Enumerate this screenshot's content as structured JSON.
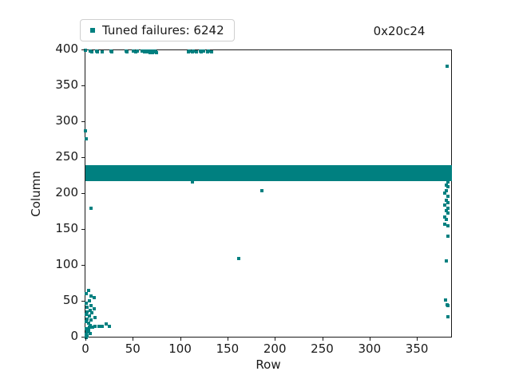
{
  "chart_data": {
    "type": "scatter",
    "title": "0x20c24",
    "xlabel": "Row",
    "ylabel": "Column",
    "xlim": [
      0,
      387
    ],
    "ylim": [
      0,
      400
    ],
    "x_ticks": [
      0,
      50,
      100,
      150,
      200,
      250,
      300,
      350
    ],
    "y_ticks": [
      0,
      50,
      100,
      150,
      200,
      250,
      300,
      350,
      400
    ],
    "grid": false,
    "legend_position": "above plot, upper-left",
    "title_position": "above plot, right",
    "series": [
      {
        "name": "Tuned failures: 6242",
        "marker": "square",
        "color": "#008080",
        "failure_count": 6242,
        "band": {
          "description": "dense horizontal band of failures spanning every row",
          "row_range": [
            0,
            387
          ],
          "col_range": [
            218,
            240.5
          ]
        },
        "points": [
          [
            0,
            400
          ],
          [
            5,
            399
          ],
          [
            7,
            398
          ],
          [
            12,
            399
          ],
          [
            13,
            398
          ],
          [
            18,
            398
          ],
          [
            27,
            399
          ],
          [
            28,
            398
          ],
          [
            43,
            399
          ],
          [
            44,
            398
          ],
          [
            51,
            399
          ],
          [
            53,
            398
          ],
          [
            55,
            399
          ],
          [
            60,
            399
          ],
          [
            62,
            398
          ],
          [
            63,
            399
          ],
          [
            66,
            398
          ],
          [
            67,
            399
          ],
          [
            68,
            397
          ],
          [
            69,
            398
          ],
          [
            70,
            399
          ],
          [
            71,
            397
          ],
          [
            72,
            398
          ],
          [
            73,
            399
          ],
          [
            74,
            398
          ],
          [
            75,
            397
          ],
          [
            109,
            398
          ],
          [
            110,
            399
          ],
          [
            113,
            398
          ],
          [
            114,
            399
          ],
          [
            117,
            398
          ],
          [
            121,
            399
          ],
          [
            122,
            398
          ],
          [
            125,
            399
          ],
          [
            129,
            398
          ],
          [
            130,
            399
          ],
          [
            133,
            398
          ],
          [
            0,
            288
          ],
          [
            1,
            277
          ],
          [
            6,
            180
          ],
          [
            3,
            66
          ],
          [
            1,
            61
          ],
          [
            6,
            58
          ],
          [
            9,
            56
          ],
          [
            4,
            51
          ],
          [
            1,
            48
          ],
          [
            6,
            45
          ],
          [
            2,
            42
          ],
          [
            9,
            40
          ],
          [
            5,
            38
          ],
          [
            2,
            36
          ],
          [
            7,
            34
          ],
          [
            1,
            32
          ],
          [
            4,
            30
          ],
          [
            10,
            28
          ],
          [
            2,
            26
          ],
          [
            6,
            24
          ],
          [
            1,
            22
          ],
          [
            3,
            20
          ],
          [
            22,
            19
          ],
          [
            5,
            17
          ],
          [
            10,
            16
          ],
          [
            14,
            16
          ],
          [
            18,
            16
          ],
          [
            25,
            16
          ],
          [
            8,
            15
          ],
          [
            4,
            14
          ],
          [
            1,
            12
          ],
          [
            3,
            10
          ],
          [
            2,
            8
          ],
          [
            5,
            6
          ],
          [
            1,
            4
          ],
          [
            2,
            2
          ],
          [
            1,
            0
          ],
          [
            113,
            217
          ],
          [
            162,
            110
          ],
          [
            186,
            204
          ],
          [
            382,
            378
          ],
          [
            383,
            217
          ],
          [
            381,
            212
          ],
          [
            383,
            210
          ],
          [
            381,
            204
          ],
          [
            379,
            201
          ],
          [
            383,
            197
          ],
          [
            381,
            191
          ],
          [
            383,
            188
          ],
          [
            379,
            184
          ],
          [
            383,
            180
          ],
          [
            381,
            177
          ],
          [
            383,
            173
          ],
          [
            379,
            168
          ],
          [
            381,
            164
          ],
          [
            379,
            158
          ],
          [
            383,
            156
          ],
          [
            383,
            141
          ],
          [
            381,
            107
          ],
          [
            380,
            52
          ],
          [
            382,
            46
          ],
          [
            383,
            44
          ],
          [
            383,
            29
          ]
        ]
      }
    ]
  }
}
